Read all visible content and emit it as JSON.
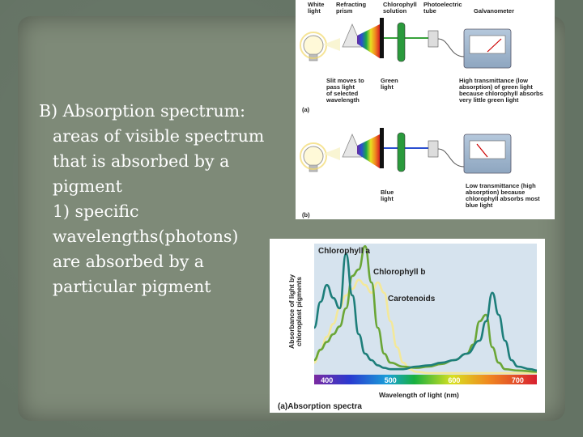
{
  "slide": {
    "heading": "B) Absorption spectrum:",
    "lines": [
      "areas of visible spectrum",
      "that is absorbed by a",
      "pigment",
      "1) specific",
      "wavelengths(photons)",
      "are absorbed by a",
      "particular pigment"
    ]
  },
  "apparatus": {
    "labels": {
      "white_light": [
        "White",
        "light"
      ],
      "prism": [
        "Refracting",
        "prism"
      ],
      "solution": [
        "Chlorophyll",
        "solution"
      ],
      "tube": [
        "Photoelectric",
        "tube"
      ],
      "galvanometer": "Galvanometer",
      "slit": [
        "Slit moves to",
        "pass light",
        "of selected",
        "wavelength"
      ],
      "green": [
        "Green",
        "light"
      ],
      "high": [
        "High transmittance (low",
        "absorption) of green light",
        "because chlorophyll absorbs",
        "very little green light"
      ],
      "blue": [
        "Blue",
        "light"
      ],
      "low": [
        "Low transmittance (high",
        "absorption) because",
        "chlorophyll absorbs most",
        "blue light"
      ],
      "a": "(a)",
      "b": "(b)"
    }
  },
  "spectra": {
    "title": "(a)Absorption spectra",
    "ylabel": [
      "Absorbance of light by",
      "chloroplast pigments"
    ],
    "xlabel": "Wavelength of light (nm)",
    "ticks": [
      "400",
      "500",
      "600",
      "700"
    ],
    "series_labels": [
      "Chlorophyll a",
      "Chlorophyll b",
      "Carotenoids"
    ],
    "colors": {
      "chl_a": "#1d7e7a",
      "chl_b": "#6aa636",
      "carot": "#f3e89a"
    }
  },
  "chart_data": {
    "type": "line",
    "xlabel": "Wavelength of light (nm)",
    "ylabel": "Absorbance of light by chloroplast pigments",
    "xlim": [
      380,
      730
    ],
    "ylim": [
      0,
      1
    ],
    "series": [
      {
        "name": "Chlorophyll a",
        "x": [
          380,
          390,
          400,
          410,
          420,
          430,
          440,
          450,
          460,
          470,
          480,
          490,
          500,
          510,
          520,
          540,
          560,
          580,
          600,
          620,
          640,
          650,
          660,
          670,
          680,
          690,
          700,
          720,
          730
        ],
        "y": [
          0.35,
          0.55,
          0.68,
          0.58,
          0.5,
          0.92,
          0.6,
          0.3,
          0.15,
          0.1,
          0.06,
          0.04,
          0.03,
          0.03,
          0.03,
          0.05,
          0.06,
          0.08,
          0.1,
          0.15,
          0.25,
          0.4,
          0.62,
          0.45,
          0.25,
          0.1,
          0.05,
          0.03,
          0.02
        ]
      },
      {
        "name": "Chlorophyll b",
        "x": [
          380,
          390,
          400,
          410,
          420,
          430,
          440,
          450,
          460,
          470,
          480,
          490,
          500,
          520,
          540,
          560,
          580,
          600,
          620,
          630,
          640,
          650,
          660,
          670,
          680,
          700,
          730
        ],
        "y": [
          0.1,
          0.18,
          0.24,
          0.3,
          0.36,
          0.5,
          0.75,
          0.8,
          0.98,
          0.7,
          0.35,
          0.15,
          0.08,
          0.05,
          0.04,
          0.05,
          0.07,
          0.1,
          0.15,
          0.22,
          0.4,
          0.45,
          0.2,
          0.08,
          0.03,
          0.02,
          0.01
        ]
      },
      {
        "name": "Carotenoids",
        "x": [
          380,
          390,
          400,
          410,
          420,
          430,
          440,
          450,
          460,
          470,
          480,
          490,
          500,
          510,
          520,
          530,
          540,
          560,
          600,
          700,
          730
        ],
        "y": [
          0.08,
          0.18,
          0.28,
          0.38,
          0.5,
          0.6,
          0.65,
          0.72,
          0.68,
          0.62,
          0.7,
          0.62,
          0.4,
          0.2,
          0.08,
          0.03,
          0.01,
          0.0,
          0.0,
          0.0,
          0.0
        ]
      }
    ]
  }
}
